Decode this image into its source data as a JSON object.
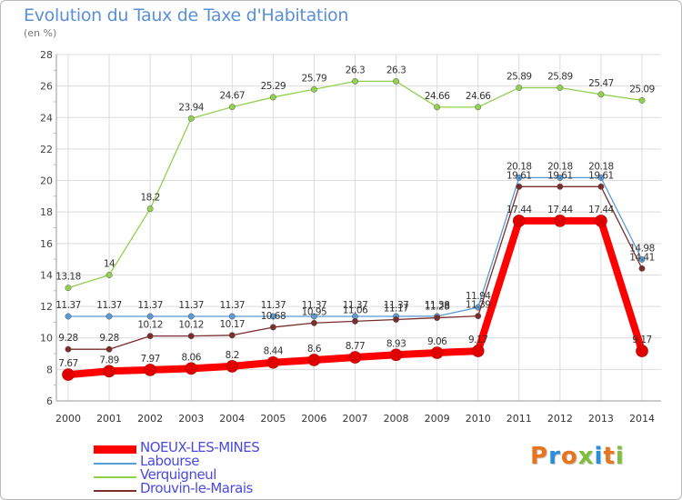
{
  "header": {
    "title": "Evolution du Taux de Taxe d'Habitation",
    "subtitle": "(en %)"
  },
  "logo": {
    "text": "Proxiti",
    "colors": [
      "#e8741c",
      "#2b8ed9",
      "#e8741c",
      "#7cbf3a",
      "#2b8ed9",
      "#e8741c",
      "#7cbf3a"
    ]
  },
  "chart_data": {
    "type": "line",
    "title": "Evolution du Taux de Taxe d'Habitation",
    "ylabel": "(en %)",
    "x": [
      2000,
      2001,
      2002,
      2003,
      2004,
      2005,
      2006,
      2007,
      2008,
      2009,
      2010,
      2011,
      2012,
      2013,
      2014
    ],
    "ylim": [
      6,
      28
    ],
    "yticks": [
      6,
      8,
      10,
      12,
      14,
      16,
      18,
      20,
      22,
      24,
      26,
      28
    ],
    "grid": true,
    "legend_position": "bottom-left",
    "series": [
      {
        "name": "NOEUX-LES-MINES",
        "color": "#ff0000",
        "values": [
          7.67,
          7.89,
          7.97,
          8.06,
          8.2,
          8.44,
          8.6,
          8.77,
          8.93,
          9.06,
          9.17,
          17.44,
          17.44,
          17.44,
          9.17
        ],
        "labels": [
          "7.67",
          "7.89",
          "7.97",
          "8.06",
          "8.2",
          "8.44",
          "8.6",
          "8.77",
          "8.93",
          "9.06",
          "9.17",
          "17.44",
          "17.44",
          "17.44",
          "9.17"
        ]
      },
      {
        "name": "Labourse",
        "color": "#5b9bd5",
        "values": [
          11.37,
          11.37,
          11.37,
          11.37,
          11.37,
          11.37,
          11.37,
          11.37,
          11.37,
          11.38,
          11.94,
          20.18,
          20.18,
          20.18,
          14.98
        ],
        "labels": [
          "11.37",
          "11.37",
          "11.37",
          "11.37",
          "11.37",
          "11.37",
          "11.37",
          "11.37",
          "11.37",
          "11.38",
          "11.94",
          "20.18",
          "20.18",
          "20.18",
          "14.98"
        ]
      },
      {
        "name": "Verquigneul",
        "color": "#92d050",
        "values": [
          13.18,
          14,
          18.2,
          23.94,
          24.67,
          25.29,
          25.79,
          26.3,
          26.3,
          24.66,
          24.66,
          25.89,
          25.89,
          25.47,
          25.09
        ],
        "labels": [
          "13.18",
          "14",
          "18.2",
          "23.94",
          "24.67",
          "25.29",
          "25.79",
          "26.3",
          "26.3",
          "24.66",
          "24.66",
          "25.89",
          "25.89",
          "25.47",
          "25.09"
        ]
      },
      {
        "name": "Drouvin-le-Marais",
        "color": "#7b2c2c",
        "values": [
          9.28,
          9.28,
          10.12,
          10.12,
          10.17,
          10.68,
          10.95,
          11.06,
          11.17,
          11.28,
          11.39,
          19.61,
          19.61,
          19.61,
          14.41
        ],
        "labels": [
          "9.28",
          "9.28",
          "10.12",
          "10.12",
          "10.17",
          "10.68",
          "10.95",
          "11.06",
          "11.17",
          "11.28",
          "11.39",
          "19.61",
          "19.61",
          "19.61",
          "14.41"
        ]
      }
    ]
  }
}
